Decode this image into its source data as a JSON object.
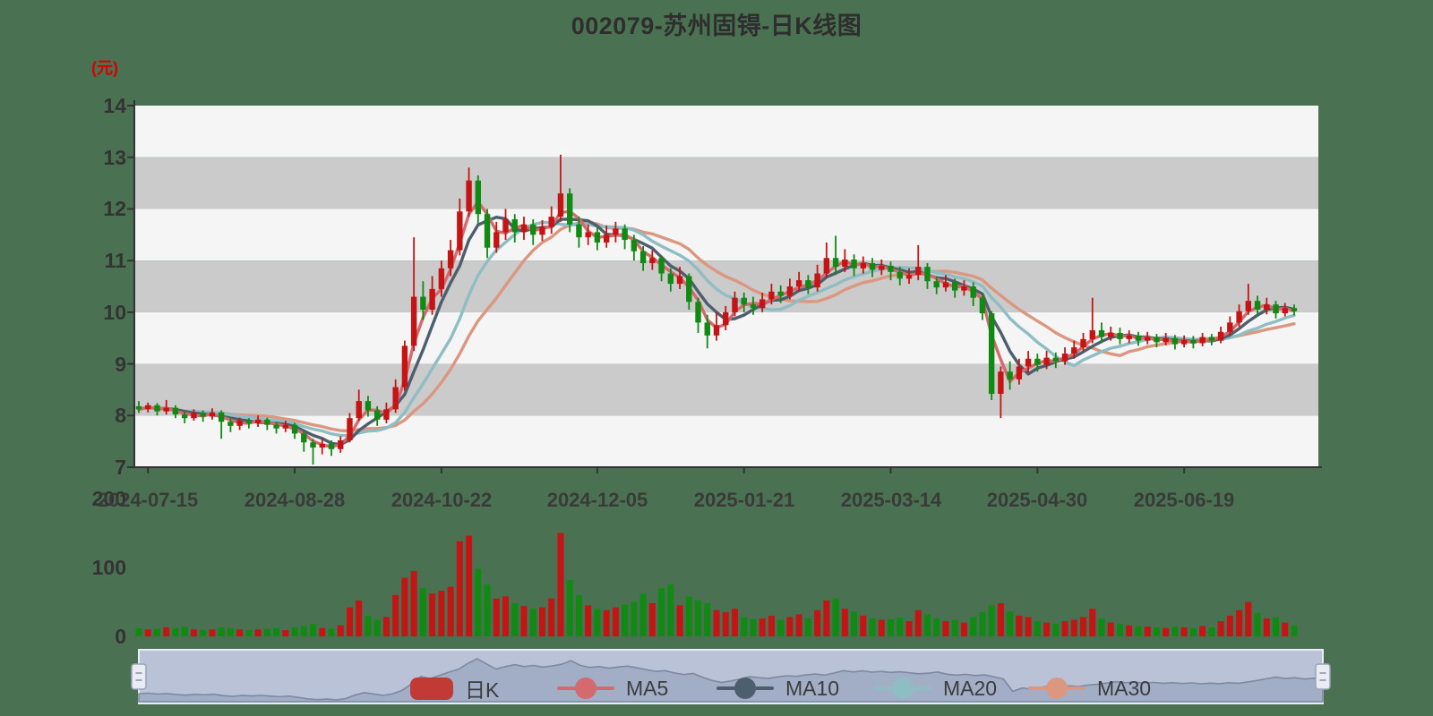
{
  "chart_data": {
    "type": "candlestick",
    "title": "002079-苏州固锝-日K线图",
    "unit_label": "(元)",
    "y_ticks": [
      "14",
      "13",
      "12",
      "11",
      "10",
      "9",
      "8",
      "7"
    ],
    "ylim": [
      7,
      14
    ],
    "volume_ticks": [
      "200",
      "100",
      "0"
    ],
    "volume_lim": [
      0,
      200
    ],
    "x_ticks": [
      {
        "index": 1,
        "label": "2024-07-15"
      },
      {
        "index": 17,
        "label": "2024-08-28"
      },
      {
        "index": 33,
        "label": "2024-10-22"
      },
      {
        "index": 50,
        "label": "2024-12-05"
      },
      {
        "index": 66,
        "label": "2025-01-21"
      },
      {
        "index": 82,
        "label": "2025-03-14"
      },
      {
        "index": 98,
        "label": "2025-04-30"
      },
      {
        "index": 114,
        "label": "2025-06-19"
      }
    ],
    "legend": [
      "日K",
      "MA5",
      "MA10",
      "MA20",
      "MA30"
    ],
    "ma_periods": [
      5,
      10,
      20,
      30
    ],
    "series_fields": [
      "open",
      "close",
      "low",
      "high",
      "volume"
    ],
    "candles": [
      [
        8.18,
        8.12,
        8.05,
        8.28,
        12
      ],
      [
        8.12,
        8.2,
        8.06,
        8.25,
        10
      ],
      [
        8.2,
        8.08,
        8.0,
        8.24,
        11
      ],
      [
        8.08,
        8.15,
        8.02,
        8.3,
        13
      ],
      [
        8.15,
        8.02,
        7.95,
        8.2,
        12
      ],
      [
        8.02,
        7.95,
        7.85,
        8.1,
        14
      ],
      [
        7.95,
        8.05,
        7.9,
        8.12,
        10
      ],
      [
        8.05,
        7.98,
        7.88,
        8.1,
        9
      ],
      [
        7.98,
        8.06,
        7.92,
        8.14,
        10
      ],
      [
        8.06,
        7.88,
        7.55,
        8.1,
        13
      ],
      [
        7.88,
        7.8,
        7.68,
        7.95,
        12
      ],
      [
        7.8,
        7.9,
        7.72,
        7.96,
        10
      ],
      [
        7.9,
        7.85,
        7.75,
        7.95,
        9
      ],
      [
        7.85,
        7.92,
        7.78,
        8.0,
        10
      ],
      [
        7.92,
        7.82,
        7.72,
        7.96,
        11
      ],
      [
        7.82,
        7.75,
        7.65,
        7.88,
        12
      ],
      [
        7.75,
        7.82,
        7.68,
        7.9,
        9
      ],
      [
        7.82,
        7.65,
        7.55,
        7.86,
        13
      ],
      [
        7.65,
        7.48,
        7.3,
        7.7,
        15
      ],
      [
        7.48,
        7.38,
        7.05,
        7.55,
        18
      ],
      [
        7.38,
        7.45,
        7.25,
        7.55,
        12
      ],
      [
        7.45,
        7.35,
        7.22,
        7.52,
        11
      ],
      [
        7.35,
        7.52,
        7.28,
        7.6,
        16
      ],
      [
        7.52,
        7.95,
        7.48,
        8.05,
        42
      ],
      [
        7.95,
        8.28,
        7.9,
        8.5,
        52
      ],
      [
        8.28,
        8.1,
        7.98,
        8.38,
        30
      ],
      [
        8.1,
        7.92,
        7.8,
        8.18,
        24
      ],
      [
        7.92,
        8.12,
        7.85,
        8.25,
        28
      ],
      [
        8.12,
        8.55,
        8.05,
        8.7,
        60
      ],
      [
        8.55,
        9.35,
        8.48,
        9.45,
        85
      ],
      [
        9.35,
        10.3,
        9.25,
        11.45,
        95
      ],
      [
        10.3,
        10.05,
        9.85,
        10.6,
        70
      ],
      [
        10.05,
        10.45,
        9.95,
        10.7,
        62
      ],
      [
        10.45,
        10.85,
        10.3,
        11.0,
        66
      ],
      [
        10.85,
        11.2,
        10.7,
        11.4,
        72
      ],
      [
        11.2,
        11.95,
        11.1,
        12.2,
        138
      ],
      [
        11.95,
        12.55,
        11.85,
        12.8,
        146
      ],
      [
        12.55,
        11.9,
        11.7,
        12.65,
        98
      ],
      [
        11.9,
        11.25,
        11.05,
        12.0,
        75
      ],
      [
        11.25,
        11.55,
        11.15,
        11.75,
        55
      ],
      [
        11.55,
        11.8,
        11.4,
        12.0,
        58
      ],
      [
        11.8,
        11.55,
        11.35,
        11.9,
        48
      ],
      [
        11.55,
        11.7,
        11.4,
        11.85,
        44
      ],
      [
        11.7,
        11.5,
        11.3,
        11.8,
        40
      ],
      [
        11.5,
        11.65,
        11.38,
        11.78,
        42
      ],
      [
        11.65,
        11.85,
        11.52,
        12.05,
        55
      ],
      [
        11.85,
        12.3,
        11.75,
        13.05,
        150
      ],
      [
        12.3,
        11.7,
        11.55,
        12.4,
        82
      ],
      [
        11.7,
        11.45,
        11.25,
        11.85,
        60
      ],
      [
        11.45,
        11.55,
        11.3,
        11.7,
        45
      ],
      [
        11.55,
        11.35,
        11.2,
        11.65,
        40
      ],
      [
        11.35,
        11.5,
        11.25,
        11.68,
        38
      ],
      [
        11.5,
        11.62,
        11.35,
        11.75,
        42
      ],
      [
        11.62,
        11.4,
        11.22,
        11.7,
        46
      ],
      [
        11.4,
        11.18,
        11.0,
        11.5,
        50
      ],
      [
        11.18,
        10.95,
        10.8,
        11.28,
        62
      ],
      [
        10.95,
        11.05,
        10.82,
        11.2,
        48
      ],
      [
        11.05,
        10.75,
        10.6,
        11.1,
        70
      ],
      [
        10.75,
        10.55,
        10.4,
        10.85,
        75
      ],
      [
        10.55,
        10.7,
        10.45,
        10.88,
        45
      ],
      [
        10.7,
        10.2,
        10.05,
        10.75,
        58
      ],
      [
        10.2,
        9.8,
        9.6,
        10.28,
        52
      ],
      [
        9.8,
        9.55,
        9.3,
        9.95,
        48
      ],
      [
        9.55,
        9.75,
        9.45,
        10.0,
        38
      ],
      [
        9.75,
        10.0,
        9.65,
        10.12,
        35
      ],
      [
        10.0,
        10.28,
        9.92,
        10.4,
        40
      ],
      [
        10.28,
        10.15,
        10.0,
        10.38,
        28
      ],
      [
        10.15,
        10.08,
        9.95,
        10.3,
        25
      ],
      [
        10.08,
        10.25,
        10.0,
        10.38,
        26
      ],
      [
        10.25,
        10.4,
        10.15,
        10.55,
        30
      ],
      [
        10.4,
        10.32,
        10.18,
        10.52,
        24
      ],
      [
        10.32,
        10.5,
        10.25,
        10.65,
        28
      ],
      [
        10.5,
        10.62,
        10.4,
        10.78,
        32
      ],
      [
        10.62,
        10.48,
        10.35,
        10.72,
        26
      ],
      [
        10.48,
        10.75,
        10.4,
        10.92,
        38
      ],
      [
        10.75,
        11.05,
        10.68,
        11.35,
        52
      ],
      [
        11.05,
        10.88,
        10.72,
        11.48,
        55
      ],
      [
        10.88,
        11.02,
        10.78,
        11.22,
        40
      ],
      [
        11.02,
        10.85,
        10.7,
        11.12,
        36
      ],
      [
        10.85,
        10.95,
        10.75,
        11.08,
        30
      ],
      [
        10.95,
        10.82,
        10.68,
        11.05,
        26
      ],
      [
        10.82,
        10.9,
        10.72,
        11.02,
        24
      ],
      [
        10.9,
        10.78,
        10.62,
        10.98,
        25
      ],
      [
        10.78,
        10.65,
        10.52,
        10.88,
        27
      ],
      [
        10.65,
        10.72,
        10.55,
        10.85,
        22
      ],
      [
        10.72,
        10.88,
        10.62,
        11.3,
        38
      ],
      [
        10.88,
        10.6,
        10.45,
        10.95,
        32
      ],
      [
        10.6,
        10.48,
        10.35,
        10.7,
        26
      ],
      [
        10.48,
        10.58,
        10.4,
        10.72,
        22
      ],
      [
        10.58,
        10.42,
        10.28,
        10.65,
        24
      ],
      [
        10.42,
        10.5,
        10.32,
        10.62,
        20
      ],
      [
        10.5,
        10.28,
        10.12,
        10.58,
        28
      ],
      [
        10.28,
        9.98,
        9.85,
        10.35,
        35
      ],
      [
        9.98,
        8.42,
        8.3,
        10.02,
        45
      ],
      [
        8.42,
        8.85,
        7.95,
        8.95,
        48
      ],
      [
        8.85,
        8.7,
        8.5,
        9.05,
        36
      ],
      [
        8.7,
        8.95,
        8.6,
        9.1,
        30
      ],
      [
        8.95,
        9.1,
        8.82,
        9.25,
        28
      ],
      [
        9.1,
        8.98,
        8.85,
        9.2,
        22
      ],
      [
        8.98,
        9.12,
        8.9,
        9.25,
        20
      ],
      [
        9.12,
        9.05,
        8.92,
        9.22,
        18
      ],
      [
        9.05,
        9.2,
        8.98,
        9.32,
        22
      ],
      [
        9.2,
        9.32,
        9.1,
        9.45,
        24
      ],
      [
        9.32,
        9.48,
        9.25,
        9.6,
        28
      ],
      [
        9.48,
        9.65,
        9.4,
        10.28,
        40
      ],
      [
        9.65,
        9.52,
        9.4,
        9.8,
        26
      ],
      [
        9.52,
        9.6,
        9.45,
        9.72,
        20
      ],
      [
        9.6,
        9.48,
        9.38,
        9.7,
        18
      ],
      [
        9.48,
        9.55,
        9.4,
        9.65,
        16
      ],
      [
        9.55,
        9.45,
        9.35,
        9.62,
        15
      ],
      [
        9.45,
        9.52,
        9.38,
        9.62,
        14
      ],
      [
        9.52,
        9.42,
        9.32,
        9.58,
        13
      ],
      [
        9.42,
        9.5,
        9.36,
        9.6,
        12
      ],
      [
        9.5,
        9.38,
        9.28,
        9.56,
        14
      ],
      [
        9.38,
        9.46,
        9.32,
        9.55,
        13
      ],
      [
        9.46,
        9.4,
        9.3,
        9.54,
        12
      ],
      [
        9.4,
        9.52,
        9.34,
        9.6,
        15
      ],
      [
        9.52,
        9.45,
        9.36,
        9.58,
        13
      ],
      [
        9.45,
        9.62,
        9.4,
        9.72,
        22
      ],
      [
        9.62,
        9.8,
        9.55,
        9.92,
        30
      ],
      [
        9.8,
        10.02,
        9.72,
        10.15,
        38
      ],
      [
        10.02,
        10.22,
        9.95,
        10.55,
        50
      ],
      [
        10.22,
        10.05,
        9.92,
        10.32,
        34
      ],
      [
        10.05,
        10.15,
        9.96,
        10.28,
        26
      ],
      [
        10.15,
        9.98,
        9.88,
        10.22,
        28
      ],
      [
        9.98,
        10.08,
        9.92,
        10.18,
        20
      ],
      [
        10.08,
        10.02,
        9.94,
        10.15,
        16
      ]
    ]
  },
  "colors": {
    "background": "#4A7252",
    "up": "#c41414",
    "down": "#108a12",
    "band_light": "#f5f5f5",
    "band_dark": "#cbcbcb",
    "axis": "#333333",
    "kline_legend": "#c23a36",
    "ma5": "#d46a6d",
    "ma10": "#4d5e6e",
    "ma20": "#8fbdc4",
    "ma30": "#db9780",
    "slider_track": "#b9c2d6",
    "slider_border": "#e8ecf4",
    "slider_fill": "#a2adc6",
    "slider_line": "#7c89a1",
    "handle_fill": "#e9ecf3",
    "handle_border": "#99a3b8"
  }
}
